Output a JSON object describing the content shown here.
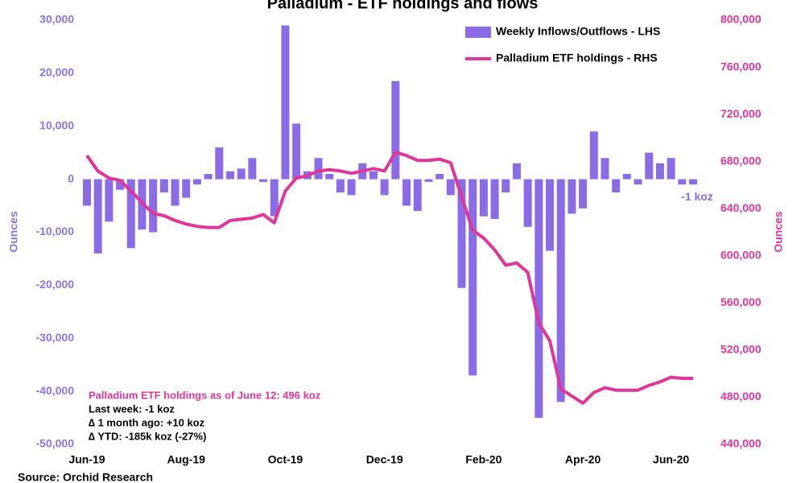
{
  "chart_data": {
    "type": "bar",
    "title": "Palladium - ETF holdings and flows",
    "y_label": "Ounces",
    "y2_label": "Ounces",
    "source": "Source: Orchid Research",
    "categories": [
      "Jun-19",
      null,
      null,
      null,
      null,
      null,
      null,
      null,
      null,
      "Aug-19",
      null,
      null,
      null,
      null,
      null,
      null,
      null,
      null,
      "Oct-19",
      null,
      null,
      null,
      null,
      null,
      null,
      null,
      null,
      "Dec-19",
      null,
      null,
      null,
      null,
      null,
      null,
      null,
      null,
      "Feb-20",
      null,
      null,
      null,
      null,
      null,
      null,
      null,
      null,
      "Apr-20",
      null,
      null,
      null,
      null,
      null,
      null,
      null,
      "Jun-20",
      null,
      null
    ],
    "series": [
      {
        "name": "Weekly Inflows/Outflows - LHS",
        "type": "bar",
        "color": "#8a6de6",
        "values": [
          -5000,
          -14000,
          -8000,
          -2000,
          -13000,
          -9500,
          -10000,
          -2500,
          -5000,
          -3500,
          -1000,
          1000,
          6000,
          1500,
          2000,
          4000,
          -500,
          -7000,
          29000,
          10500,
          1500,
          4000,
          1000,
          -2500,
          -3000,
          3000,
          1500,
          -3000,
          18500,
          -5000,
          -6000,
          -500,
          1000,
          -3000,
          -20500,
          -37000,
          -7000,
          -7500,
          -2500,
          3000,
          -9000,
          -45000,
          -13500,
          -42000,
          -6500,
          -5500,
          9000,
          4000,
          -2500,
          1000,
          -1000,
          5000,
          3000,
          4000,
          -1000,
          -1000
        ],
        "value_labels": [
          null,
          null,
          null,
          null,
          null,
          null,
          null,
          null,
          null,
          null,
          null,
          null,
          null,
          null,
          null,
          null,
          null,
          null,
          null,
          null,
          null,
          null,
          null,
          null,
          null,
          null,
          null,
          null,
          null,
          null,
          null,
          null,
          null,
          null,
          null,
          null,
          null,
          null,
          null,
          null,
          null,
          null,
          null,
          null,
          null,
          null,
          null,
          null,
          null,
          null,
          null,
          null,
          null,
          null,
          null,
          "-1 koz"
        ]
      },
      {
        "name": "Palladium ETF holdings - RHS",
        "type": "line",
        "axis": "y2",
        "color": "#e0359a",
        "values": [
          685000,
          672000,
          666000,
          664000,
          655000,
          645000,
          636000,
          634000,
          630000,
          627000,
          625000,
          624000,
          624000,
          630000,
          631000,
          632000,
          635000,
          628000,
          655000,
          666000,
          668000,
          672000,
          673000,
          672000,
          670000,
          672000,
          674000,
          672000,
          688000,
          685000,
          681000,
          681000,
          682000,
          679000,
          650000,
          622000,
          615000,
          605000,
          592000,
          594000,
          586000,
          543000,
          528000,
          487000,
          481000,
          475000,
          484000,
          488000,
          486000,
          486000,
          486000,
          490000,
          493000,
          497000,
          496000,
          496000
        ]
      }
    ],
    "ylim": [
      -50000,
      30000
    ],
    "yticks": [
      {
        "value": -50000,
        "label": "-50,000"
      },
      {
        "value": -40000,
        "label": "-40,000"
      },
      {
        "value": -30000,
        "label": "-30,000"
      },
      {
        "value": -20000,
        "label": "-20,000"
      },
      {
        "value": -10000,
        "label": "-10,000"
      },
      0,
      {
        "value": 10000,
        "label": "10,000"
      },
      {
        "value": 20000,
        "label": "20,000"
      },
      {
        "value": 30000,
        "label": "30,000"
      }
    ],
    "y2lim": [
      440000,
      800000
    ],
    "y2ticks": [
      {
        "value": 440000,
        "label": "440,000"
      },
      {
        "value": 480000,
        "label": "480,000"
      },
      {
        "value": 520000,
        "label": "520,000"
      },
      {
        "value": 560000,
        "label": "560,000"
      },
      {
        "value": 600000,
        "label": "600,000"
      },
      {
        "value": 640000,
        "label": "640,000"
      },
      {
        "value": 680000,
        "label": "680,000"
      },
      {
        "value": 720000,
        "label": "720,000"
      },
      {
        "value": 760000,
        "label": "760,000"
      },
      {
        "value": 800000,
        "label": "800,000"
      }
    ],
    "annotations": [
      "Palladium ETF holdings as of June 12: 496 koz",
      "Last week: -1 koz",
      "∆ 1 month ago: +10 koz",
      "∆ YTD: -185k koz (-27%)"
    ],
    "grid": false,
    "legend": "top-right"
  }
}
